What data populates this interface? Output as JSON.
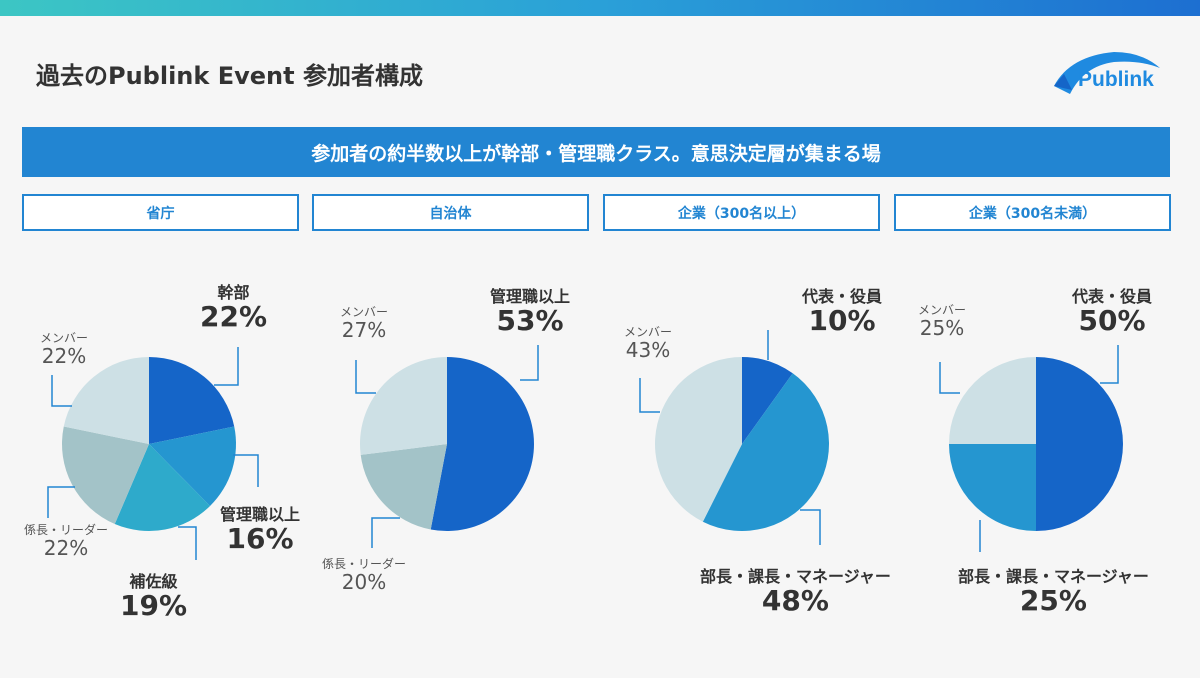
{
  "header": {
    "title": "過去のPublink Event 参加者構成",
    "logo": "Publink"
  },
  "banner": "参加者の約半数以上が幹部・管理職クラス。意思決定層が集まる場",
  "categories": [
    "省庁",
    "自治体",
    "企業（300名以上）",
    "企業（300名未満）"
  ],
  "colors": {
    "dark": "#1565c8",
    "mid": "#2596d0",
    "cyan": "#2eaacb",
    "gray": "#a3c3c8",
    "light": "#cde0e5",
    "accent": "#2285d2"
  },
  "chart_data": [
    {
      "type": "pie",
      "title": "省庁",
      "slices": [
        {
          "label": "幹部",
          "value": 22,
          "display": "22%",
          "color": "#1565c8"
        },
        {
          "label": "管理職以上",
          "value": 16,
          "display": "16%",
          "color": "#2596d0"
        },
        {
          "label": "補佐級",
          "value": 19,
          "display": "19%",
          "color": "#2eaacb"
        },
        {
          "label": "係長・リーダー",
          "value": 22,
          "display": "22%",
          "color": "#a3c3c8"
        },
        {
          "label": "メンバー",
          "value": 22,
          "display": "22%",
          "color": "#cde0e5"
        }
      ]
    },
    {
      "type": "pie",
      "title": "自治体",
      "slices": [
        {
          "label": "管理職以上",
          "value": 53,
          "display": "53%",
          "color": "#1565c8"
        },
        {
          "label": "係長・リーダー",
          "value": 20,
          "display": "20%",
          "color": "#a3c3c8"
        },
        {
          "label": "メンバー",
          "value": 27,
          "display": "27%",
          "color": "#cde0e5"
        }
      ]
    },
    {
      "type": "pie",
      "title": "企業（300名以上）",
      "slices": [
        {
          "label": "代表・役員",
          "value": 10,
          "display": "10%",
          "color": "#1565c8"
        },
        {
          "label": "部長・課長・マネージャー",
          "value": 48,
          "display": "48%",
          "color": "#2596d0"
        },
        {
          "label": "メンバー",
          "value": 43,
          "display": "43%",
          "color": "#cde0e5"
        }
      ]
    },
    {
      "type": "pie",
      "title": "企業（300名未満）",
      "slices": [
        {
          "label": "代表・役員",
          "value": 50,
          "display": "50%",
          "color": "#1565c8"
        },
        {
          "label": "部長・課長・マネージャー",
          "value": 25,
          "display": "25%",
          "color": "#2596d0"
        },
        {
          "label": "メンバー",
          "value": 25,
          "display": "25%",
          "color": "#cde0e5"
        }
      ]
    }
  ]
}
